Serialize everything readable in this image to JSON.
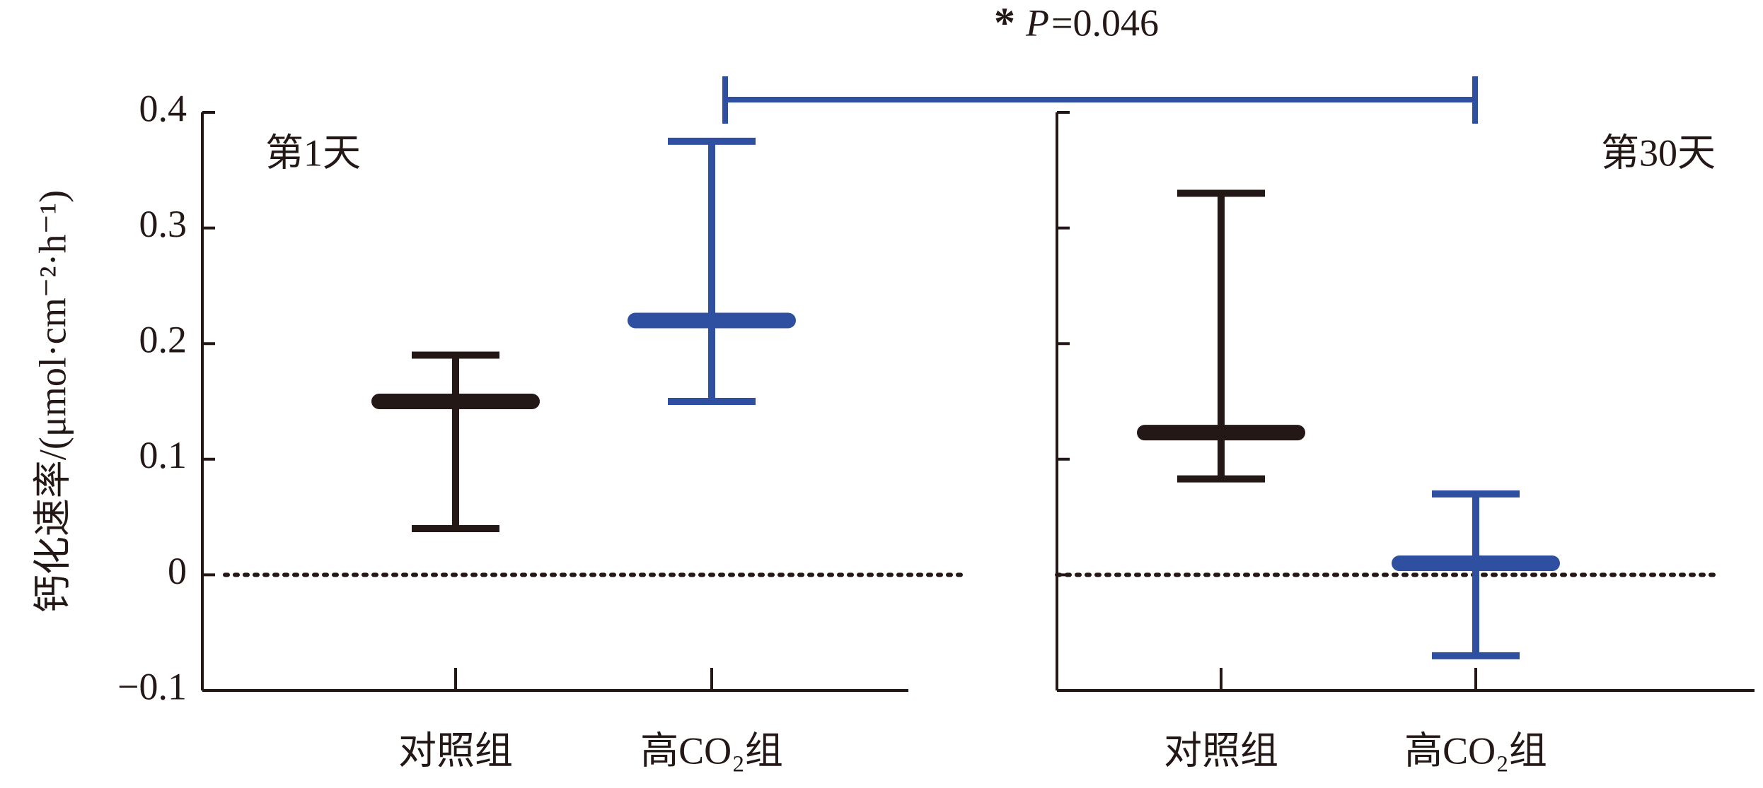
{
  "chart_data": {
    "type": "errorbar",
    "ylabel": "钙化速率/(μmol·cm⁻²·h⁻¹)",
    "ylim": [
      -0.1,
      0.4
    ],
    "yticks": [
      {
        "value": -0.1,
        "label": "−0.1"
      },
      0,
      0.1,
      0.2,
      0.3,
      0.4
    ],
    "zero_line": true,
    "significance": {
      "marker": "*",
      "symbol": "P",
      "text": "=0.046"
    },
    "panels": [
      {
        "title": "第1天",
        "categories": [
          "对照组",
          "高CO₂组"
        ],
        "colors": [
          "#231815",
          "#2f4fa0"
        ],
        "mean": [
          0.15,
          0.22
        ],
        "low": [
          0.04,
          0.15
        ],
        "high": [
          0.19,
          0.375
        ]
      },
      {
        "title": "第30天",
        "categories": [
          "对照组",
          "高CO₂组"
        ],
        "colors": [
          "#231815",
          "#2f4fa0"
        ],
        "mean": [
          0.123,
          0.01
        ],
        "low": [
          0.083,
          -0.07
        ],
        "high": [
          0.33,
          0.07
        ]
      }
    ]
  }
}
